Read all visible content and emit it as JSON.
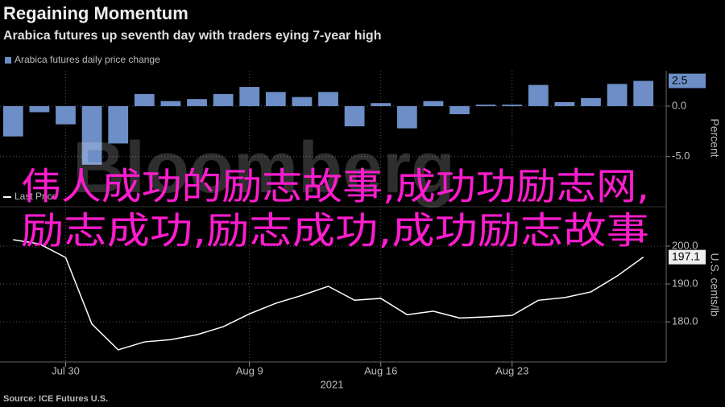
{
  "title": "Regaining Momentum",
  "subtitle": "Arabica futures up seventh day with traders eying 7-year high",
  "source": "Source: ICE Futures U.S.",
  "watermark": "Bloomberg",
  "overlay_lines": [
    "伟人成功的励志故事,成功功励志网,",
    "励志成功,励志成功,成功励志故事"
  ],
  "chart_data": [
    {
      "type": "bar",
      "legend": "Arabica futures daily price change",
      "y_label": "Percent",
      "color": "#6d8ec6",
      "values": [
        -3.0,
        -0.6,
        -1.8,
        -5.8,
        -3.7,
        1.2,
        0.5,
        0.7,
        1.2,
        1.9,
        1.4,
        0.9,
        1.4,
        -2.0,
        0.3,
        -2.2,
        0.5,
        -0.8,
        0.15,
        0.15,
        2.1,
        0.4,
        0.8,
        2.2,
        2.5
      ],
      "ylim": [
        -9.8,
        3.5
      ],
      "yticks": [
        {
          "value": 0,
          "label": "0.0"
        },
        {
          "value": -5,
          "label": "-5.0"
        }
      ],
      "grid": true
    },
    {
      "type": "line",
      "legend": "Last Price",
      "y_label": "U.S. cents/lb",
      "color": "#ffffff",
      "year_label": "2021",
      "categories": [
        null,
        null,
        "Jul 30",
        null,
        null,
        null,
        null,
        null,
        null,
        "Aug 9",
        null,
        null,
        null,
        null,
        "Aug 16",
        null,
        null,
        null,
        null,
        "Aug 23",
        null,
        null,
        null,
        null,
        null
      ],
      "values": [
        201.7,
        200.6,
        197.0,
        179.4,
        172.6,
        174.7,
        175.3,
        176.6,
        178.7,
        182.1,
        184.9,
        187.0,
        189.4,
        185.7,
        186.2,
        181.9,
        182.8,
        181.0,
        181.3,
        181.7,
        185.7,
        186.4,
        187.9,
        192.1,
        197.1
      ],
      "ylim": [
        169.4,
        210.2
      ],
      "yticks": [
        {
          "value": 180,
          "label": "180.0"
        },
        {
          "value": 190,
          "label": "190.0"
        },
        {
          "value": 200,
          "label": "200.0"
        }
      ],
      "grid": true
    }
  ]
}
